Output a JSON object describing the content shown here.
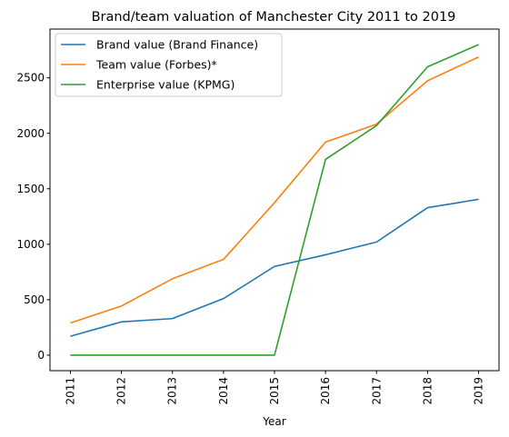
{
  "chart_data": {
    "type": "line",
    "title": "Brand/team valuation of Manchester City 2011 to 2019",
    "xlabel": "Year",
    "ylabel": "",
    "x": [
      "2011",
      "2012",
      "2013",
      "2014",
      "2015",
      "2016",
      "2017",
      "2018",
      "2019"
    ],
    "xlim": [
      2010.6,
      2019.4
    ],
    "ylim": [
      -140,
      2940
    ],
    "yticks": [
      0,
      500,
      1000,
      1500,
      2000,
      2500
    ],
    "grid": false,
    "legend_position": "top-left",
    "series": [
      {
        "name": "Brand value (Brand Finance)",
        "color": "#1f77b4",
        "values": [
          170,
          300,
          330,
          510,
          800,
          905,
          1020,
          1330,
          1405
        ]
      },
      {
        "name": "Team value (Forbes)*",
        "color": "#ff7f0e",
        "values": [
          290,
          443,
          689,
          863,
          1375,
          1921,
          2083,
          2474,
          2688
        ]
      },
      {
        "name": "Enterprise value (KPMG)",
        "color": "#2ca02c",
        "values": [
          0,
          0,
          0,
          0,
          0,
          1765,
          2070,
          2600,
          2800
        ]
      }
    ]
  }
}
